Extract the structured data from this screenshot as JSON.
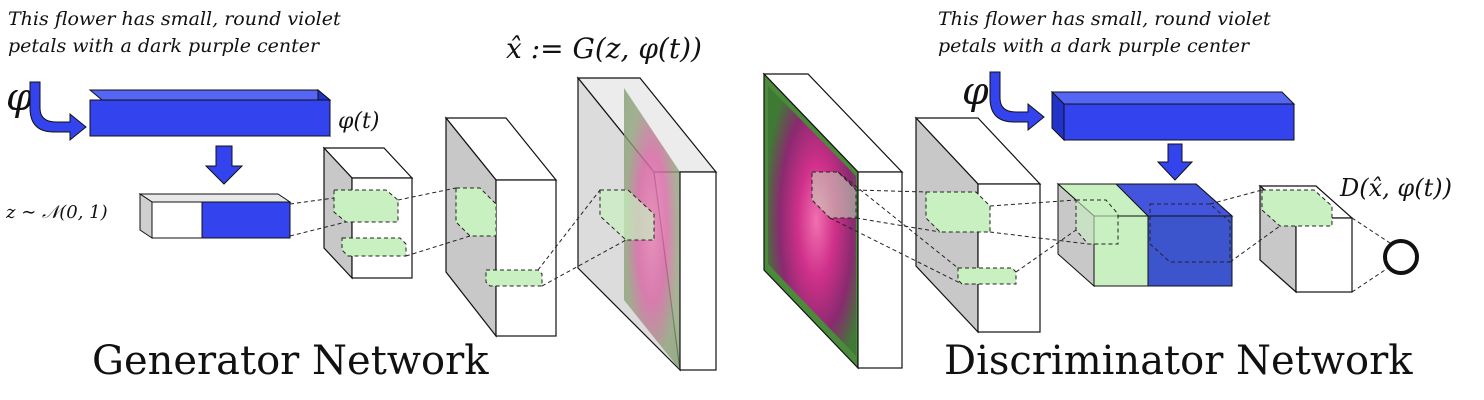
{
  "generator": {
    "caption_line1": "This flower has small, round violet",
    "caption_line2": "petals with a dark purple center",
    "phi_symbol": "φ",
    "phi_t_label": "φ(t)",
    "z_label": "z ∼ 𝒩(0, 1)",
    "output_label": "x̂ := G(z, φ(t))",
    "title": "Generator Network"
  },
  "discriminator": {
    "caption_line1": "This flower has small, round violet",
    "caption_line2": "petals with a dark purple center",
    "phi_symbol": "φ",
    "output_label": "D(x̂, φ(t))",
    "title": "Discriminator Network"
  },
  "colors": {
    "embedding_blue": "#3344ee",
    "feature_green": "#c8f0c0",
    "volume_gray": "#c8c8c8",
    "flower_magenta": "#d0308a",
    "leaf_green": "#4a8a3a"
  },
  "icons": [
    "curved-arrow-icon",
    "down-arrow-icon",
    "output-circle-icon"
  ]
}
